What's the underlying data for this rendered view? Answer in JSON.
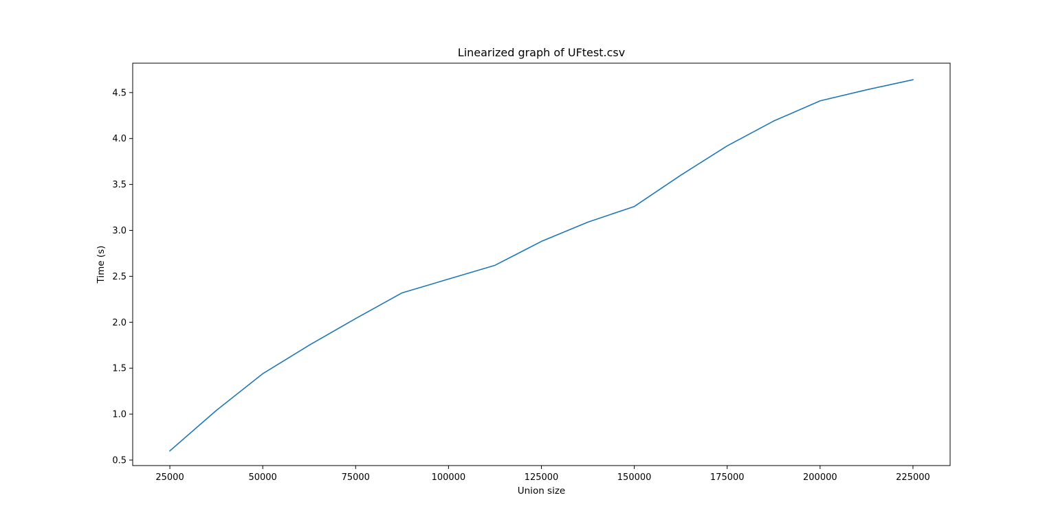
{
  "chart_data": {
    "type": "line",
    "title": "Linearized graph of UFtest.csv",
    "xlabel": "Union size",
    "ylabel": "Time  (s)",
    "xlim": [
      15000,
      235000
    ],
    "ylim": [
      0.44,
      4.82
    ],
    "grid": false,
    "x_ticks": [
      25000,
      50000,
      75000,
      100000,
      125000,
      150000,
      175000,
      200000,
      225000
    ],
    "y_ticks": [
      0.5,
      1.0,
      1.5,
      2.0,
      2.5,
      3.0,
      3.5,
      4.0,
      4.5
    ],
    "series": [
      {
        "color": "#1f77b4",
        "x": [
          25000,
          37500,
          50000,
          62500,
          75000,
          87500,
          100000,
          112500,
          125000,
          137500,
          150000,
          162500,
          175000,
          187500,
          200000,
          212500,
          225000
        ],
        "y": [
          0.6,
          1.04,
          1.44,
          1.75,
          2.04,
          2.32,
          2.47,
          2.62,
          2.88,
          3.09,
          3.26,
          3.6,
          3.92,
          4.19,
          4.41,
          4.53,
          4.64
        ]
      }
    ]
  }
}
